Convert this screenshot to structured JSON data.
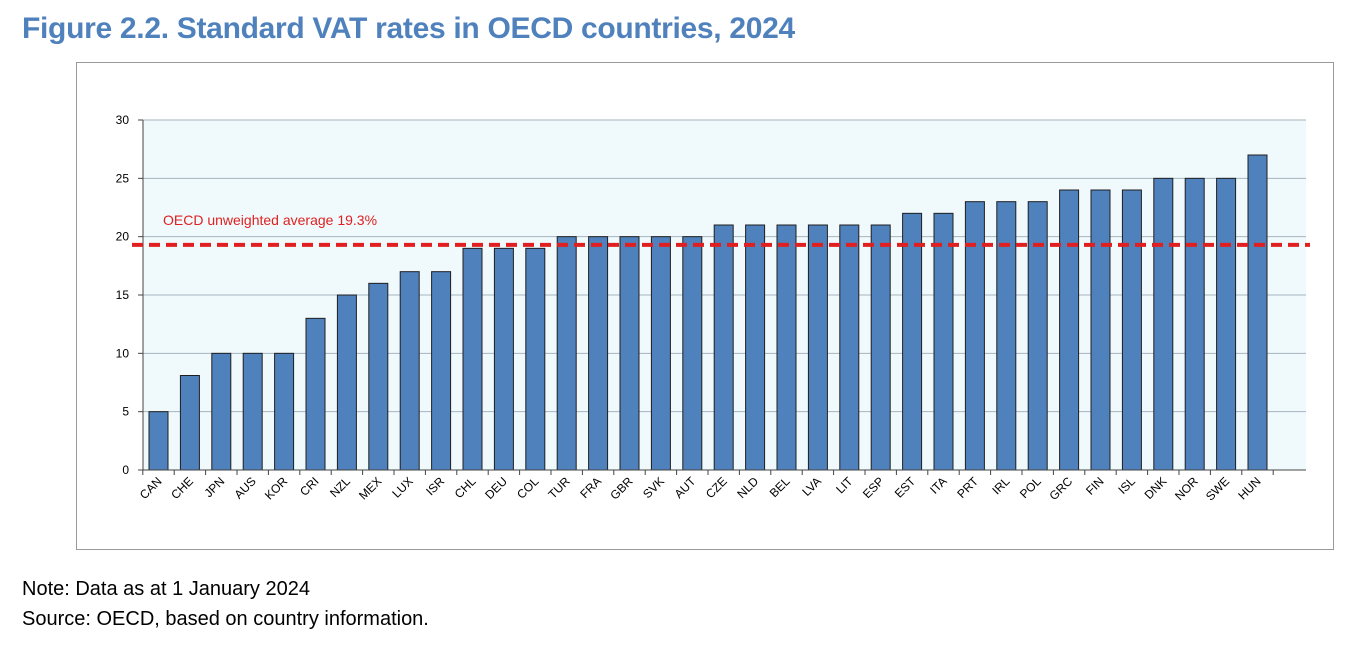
{
  "title": "Figure 2.2. Standard VAT rates in OECD countries, 2024",
  "note": "Note: Data as at 1 January 2024",
  "source": "Source: OECD, based on country information.",
  "colors": {
    "bar": "#4f81bd",
    "bar_stroke": "#1f1f1f",
    "plot_bg": "#f0fafd",
    "grid": "#a6b4be",
    "average_line": "#e02020",
    "title": "#4f81bd"
  },
  "chart_data": {
    "type": "bar",
    "categories": [
      "CAN",
      "CHE",
      "JPN",
      "AUS",
      "KOR",
      "CRI",
      "NZL",
      "MEX",
      "LUX",
      "ISR",
      "CHL",
      "DEU",
      "COL",
      "TUR",
      "FRA",
      "GBR",
      "SVK",
      "AUT",
      "CZE",
      "NLD",
      "BEL",
      "LVA",
      "LIT",
      "ESP",
      "EST",
      "ITA",
      "PRT",
      "IRL",
      "POL",
      "GRC",
      "FIN",
      "ISL",
      "DNK",
      "NOR",
      "SWE",
      "HUN"
    ],
    "values": [
      5,
      8.1,
      10,
      10,
      10,
      13,
      15,
      16,
      17,
      17,
      19,
      19,
      19,
      20,
      20,
      20,
      20,
      20,
      21,
      21,
      21,
      21,
      21,
      21,
      22,
      22,
      23,
      23,
      23,
      24,
      24,
      24,
      25,
      25,
      25,
      27
    ],
    "ylim": [
      0,
      30
    ],
    "yticks": [
      0,
      5,
      10,
      15,
      20,
      25,
      30
    ],
    "grid": true,
    "average": {
      "value": 19.3,
      "label": "OECD unweighted average 19.3%"
    }
  }
}
